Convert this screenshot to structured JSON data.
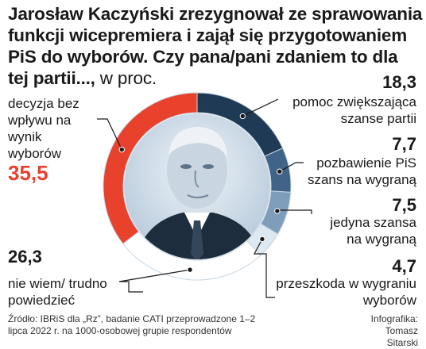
{
  "title": "Jarosław Kaczyński zrezygnował ze sprawowania funkcji wicepremiera i zajął się przygotowaniem PiS do wyborów. Czy pana/pani zdaniem to dla tej partii...,",
  "unit": "w proc.",
  "source": "Źródło: IBRiS dla „Rz”, badanie CATI przeprowadzone 1–2 lipca 2022 r. na 1000-osobowej grupie respondentów",
  "credit": "Infografika: Tomasz Sitarski",
  "chart_data": {
    "type": "pie",
    "variant": "donut",
    "categories": [
      "pomoc zwiększająca szanse partii",
      "pozbawienie PiS szans na wygraną",
      "jedyna szansa na wygraną",
      "przeszkoda w wygraniu wyborów",
      "nie wiem/ trudno powiedzieć",
      "decyzja bez wpływu na wynik wyborów"
    ],
    "values": [
      18.3,
      7.7,
      7.5,
      4.7,
      26.3,
      35.5
    ],
    "value_labels": [
      "18,3",
      "7,7",
      "7,5",
      "4,7",
      "26,3",
      "35,5"
    ],
    "colors": [
      "#1e3a55",
      "#3f6487",
      "#7d9dbb",
      "#dde8f1",
      "#ffffff",
      "#e8412c"
    ],
    "highlight": "decyzja bez wpływu na wynik wyborów"
  }
}
